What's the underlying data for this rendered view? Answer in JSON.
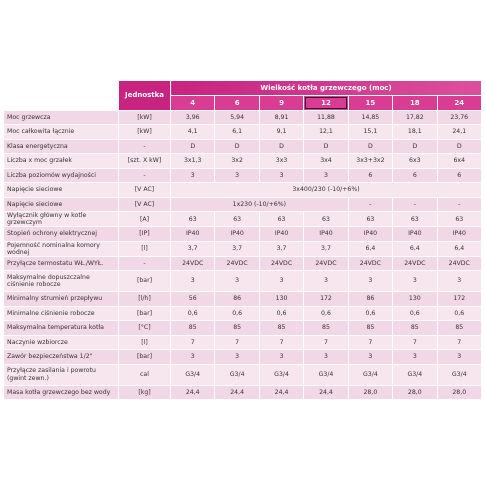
{
  "header": {
    "unit_label": "Jednostka",
    "title": "Wielkość kotła grzewczego (moc)",
    "sizes": [
      "4",
      "6",
      "9",
      "12",
      "15",
      "18",
      "24"
    ]
  },
  "rows": [
    {
      "label": "Moc grzewcza",
      "unit": "[kW]",
      "values": [
        "3,96",
        "5,94",
        "8,91",
        "11,88",
        "14,85",
        "17,82",
        "23,76"
      ]
    },
    {
      "label": "Moc całkowita łącznie",
      "unit": "[kW]",
      "values": [
        "4,1",
        "6,1",
        "9,1",
        "12,1",
        "15,1",
        "18,1",
        "24,1"
      ]
    },
    {
      "label": "Klasa energetyczna",
      "unit": "-",
      "values": [
        "D",
        "D",
        "D",
        "D",
        "D",
        "D",
        "D"
      ]
    },
    {
      "label": "Liczba x moc grzałek",
      "unit": "[szt. X kW]",
      "values": [
        "3x1,3",
        "3x2",
        "3x3",
        "3x4",
        "3x3+3x2",
        "6x3",
        "6x4"
      ]
    },
    {
      "label": "Liczba poziomów wydajności",
      "unit": "-",
      "values": [
        "3",
        "3",
        "3",
        "3",
        "6",
        "6",
        "6"
      ]
    },
    {
      "label": "Napięcie sieciowe",
      "unit": "[V AC]",
      "values": [
        "3x400/230 (-10/+6%)"
      ]
    },
    {
      "label": "Napięcie sieciowe",
      "unit": "[V AC]",
      "values": [
        "1x230 (-10/+6%)",
        "-",
        "-",
        "-"
      ]
    },
    {
      "label": "Wyłącznik główny w kotle grzewczym",
      "unit": "[A]",
      "values": [
        "63",
        "63",
        "63",
        "63",
        "63",
        "63",
        "63"
      ]
    },
    {
      "label": "Stopień ochrony elektrycznej",
      "unit": "[IP]",
      "values": [
        "IP40",
        "IP40",
        "IP40",
        "IP40",
        "IP40",
        "IP40",
        "IP40"
      ]
    },
    {
      "label": "Pojemność nominalna komory wodnej",
      "unit": "[l]",
      "values": [
        "3,7",
        "3,7",
        "3,7",
        "3,7",
        "6,4",
        "6,4",
        "6,4"
      ]
    },
    {
      "label": "Przyłącze termostatu WŁ./WYŁ.",
      "unit": "-",
      "values": [
        "24VDC",
        "24VDC",
        "24VDC",
        "24VDC",
        "24VDC",
        "24VDC",
        "24VDC"
      ]
    },
    {
      "label": "Maksymalne dopuszczalne ciśnienie robocze",
      "unit": "[bar]",
      "values": [
        "3",
        "3",
        "3",
        "3",
        "3",
        "3",
        "3"
      ]
    },
    {
      "label": "Minimalny strumień przepływu",
      "unit": "[l/h]",
      "values": [
        "56",
        "86",
        "130",
        "172",
        "86",
        "130",
        "172"
      ]
    },
    {
      "label": "Minimalne ciśnienie robocze",
      "unit": "[bar]",
      "values": [
        "0,6",
        "0,6",
        "0,6",
        "0,6",
        "0,6",
        "0,6",
        "0,6"
      ]
    },
    {
      "label": "Maksymalna temperatura kotła",
      "unit": "[°C]",
      "values": [
        "85",
        "85",
        "85",
        "85",
        "85",
        "85",
        "85"
      ]
    },
    {
      "label": "Naczynie wzbiorcze",
      "unit": "[l]",
      "values": [
        "7",
        "7",
        "7",
        "7",
        "7",
        "7",
        "7"
      ]
    },
    {
      "label": "Zawór bezpieczeństwa 1/2\"",
      "unit": "[bar]",
      "values": [
        "3",
        "3",
        "3",
        "3",
        "3",
        "3",
        "3"
      ]
    },
    {
      "label": "Przyłącze zasilania i powrotu (gwint zewn.)",
      "unit": "cal",
      "values": [
        "G3/4",
        "G3/4",
        "G3/4",
        "G3/4",
        "G3/4",
        "G3/4",
        "G3/4"
      ]
    },
    {
      "label": "Masa kotła grzewczego bez wody",
      "unit": "[kg]",
      "values": [
        "24,4",
        "24,4",
        "24,4",
        "24,4",
        "28,0",
        "28,0",
        "28,0"
      ]
    }
  ]
}
